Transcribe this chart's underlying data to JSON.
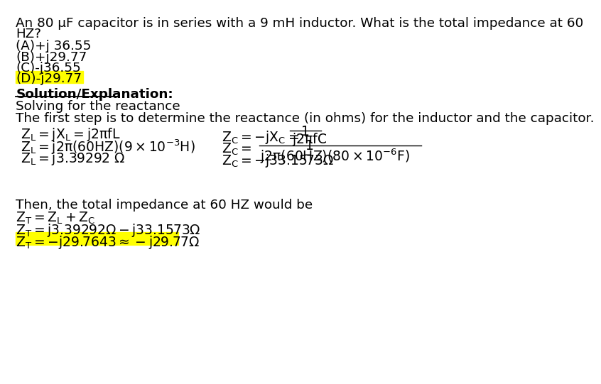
{
  "bg_color": "#ffffff",
  "highlight_color": "#ffff00",
  "question_line1": "An 80 μF capacitor is in series with a 9 mH inductor. What is the total impedance at 60",
  "question_line2": "HZ?",
  "opt_a": "(A)+j 36.55",
  "opt_b": "(B)+j29.77",
  "opt_c": "(C)-j36.55",
  "opt_d": "(D)-j29.77",
  "solution_header": "Solution/Explanation:",
  "solving_line": "Solving for the reactance",
  "first_step": "The first step is to determine the reactance (in ohms) for the inductor and the capacitor.",
  "zl1": "Z",
  "zl1_sub": "L",
  "zl1_rest": "=jX",
  "zl1_xsub": "L",
  "zl1_end": "=j2πfL",
  "zl2_start": "Z",
  "zl2_sub": "L",
  "zl2_rest": "=j2π(60HZ)(9×10",
  "zl2_sup": "-3",
  "zl2_end": "H)",
  "zl3_start": "Z",
  "zl3_sub": "L",
  "zl3_end": "=j3.39292 Ω",
  "then_line": "Then, the total impedance at 60 HZ would be",
  "zt1_start": "Z",
  "zt1_sub": "T",
  "zt1_rest": "=Z",
  "zt1_sub2": "L",
  "zt1_end": "+Z",
  "zt1_sub3": "C",
  "zt2_start": "Z",
  "zt2_sub": "T",
  "zt2_rest": "=j3.39292Ω-j33.1573Ω",
  "zt3_start": "Z",
  "zt3_sub": "T",
  "zt3_rest": "=-j29.7643 ≈ -j29.77Ω"
}
